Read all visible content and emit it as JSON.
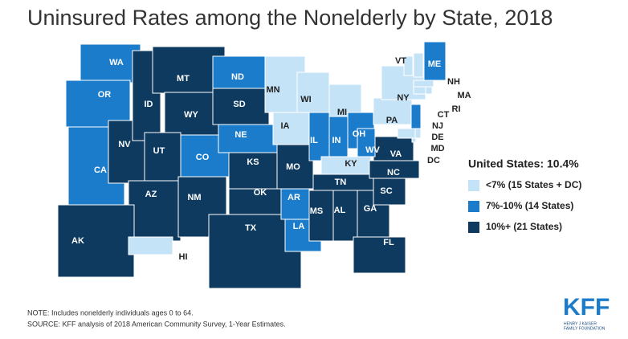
{
  "title": "Uninsured Rates among the Nonelderly by State, 2018",
  "legend": {
    "title": "United States: 10.4%",
    "items": [
      {
        "label": "<7% (15 States + DC)",
        "color": "#c5e3f7"
      },
      {
        "label": "7%-10% (14 States)",
        "color": "#1b7ccc"
      },
      {
        "label": "10%+ (21 States)",
        "color": "#0d3a5e"
      }
    ]
  },
  "states": [
    {
      "label": "WA",
      "group": 1
    },
    {
      "label": "OR",
      "group": 1
    },
    {
      "label": "CA",
      "group": 1
    },
    {
      "label": "NV",
      "group": 2
    },
    {
      "label": "ID",
      "group": 2
    },
    {
      "label": "MT",
      "group": 2
    },
    {
      "label": "WY",
      "group": 2
    },
    {
      "label": "UT",
      "group": 2
    },
    {
      "label": "AZ",
      "group": 2
    },
    {
      "label": "CO",
      "group": 1
    },
    {
      "label": "NM",
      "group": 2
    },
    {
      "label": "ND",
      "group": 1
    },
    {
      "label": "SD",
      "group": 2
    },
    {
      "label": "NE",
      "group": 1
    },
    {
      "label": "KS",
      "group": 2
    },
    {
      "label": "OK",
      "group": 2
    },
    {
      "label": "TX",
      "group": 2
    },
    {
      "label": "MN",
      "group": 0
    },
    {
      "label": "IA",
      "group": 0
    },
    {
      "label": "MO",
      "group": 2
    },
    {
      "label": "AR",
      "group": 1
    },
    {
      "label": "LA",
      "group": 1
    },
    {
      "label": "WI",
      "group": 0
    },
    {
      "label": "IL",
      "group": 1
    },
    {
      "label": "MI",
      "group": 0
    },
    {
      "label": "IN",
      "group": 1
    },
    {
      "label": "OH",
      "group": 1
    },
    {
      "label": "KY",
      "group": 0
    },
    {
      "label": "TN",
      "group": 2
    },
    {
      "label": "MS",
      "group": 2
    },
    {
      "label": "AL",
      "group": 2
    },
    {
      "label": "GA",
      "group": 2
    },
    {
      "label": "FL",
      "group": 2
    },
    {
      "label": "SC",
      "group": 2
    },
    {
      "label": "NC",
      "group": 2
    },
    {
      "label": "VA",
      "group": 2
    },
    {
      "label": "WV",
      "group": 1
    },
    {
      "label": "PA",
      "group": 0
    },
    {
      "label": "NY",
      "group": 0
    },
    {
      "label": "NJ",
      "group": 1
    },
    {
      "label": "DE",
      "group": 0
    },
    {
      "label": "MD",
      "group": 0
    },
    {
      "label": "DC",
      "group": 0
    },
    {
      "label": "VT",
      "group": 0
    },
    {
      "label": "NH",
      "group": 0
    },
    {
      "label": "ME",
      "group": 1
    },
    {
      "label": "MA",
      "group": 0
    },
    {
      "label": "CT",
      "group": 0
    },
    {
      "label": "RI",
      "group": 0
    },
    {
      "label": "AK",
      "group": 2
    },
    {
      "label": "HI",
      "group": 0
    }
  ],
  "notes": [
    "NOTE: Includes nonelderly individuals ages 0 to 64.",
    "SOURCE: KFF analysis of 2018 American Community Survey, 1-Year Estimates."
  ],
  "logo": {
    "name": "KFF",
    "subtitle": [
      "HENRY J KAISER",
      "FAMILY FOUNDATION"
    ]
  }
}
